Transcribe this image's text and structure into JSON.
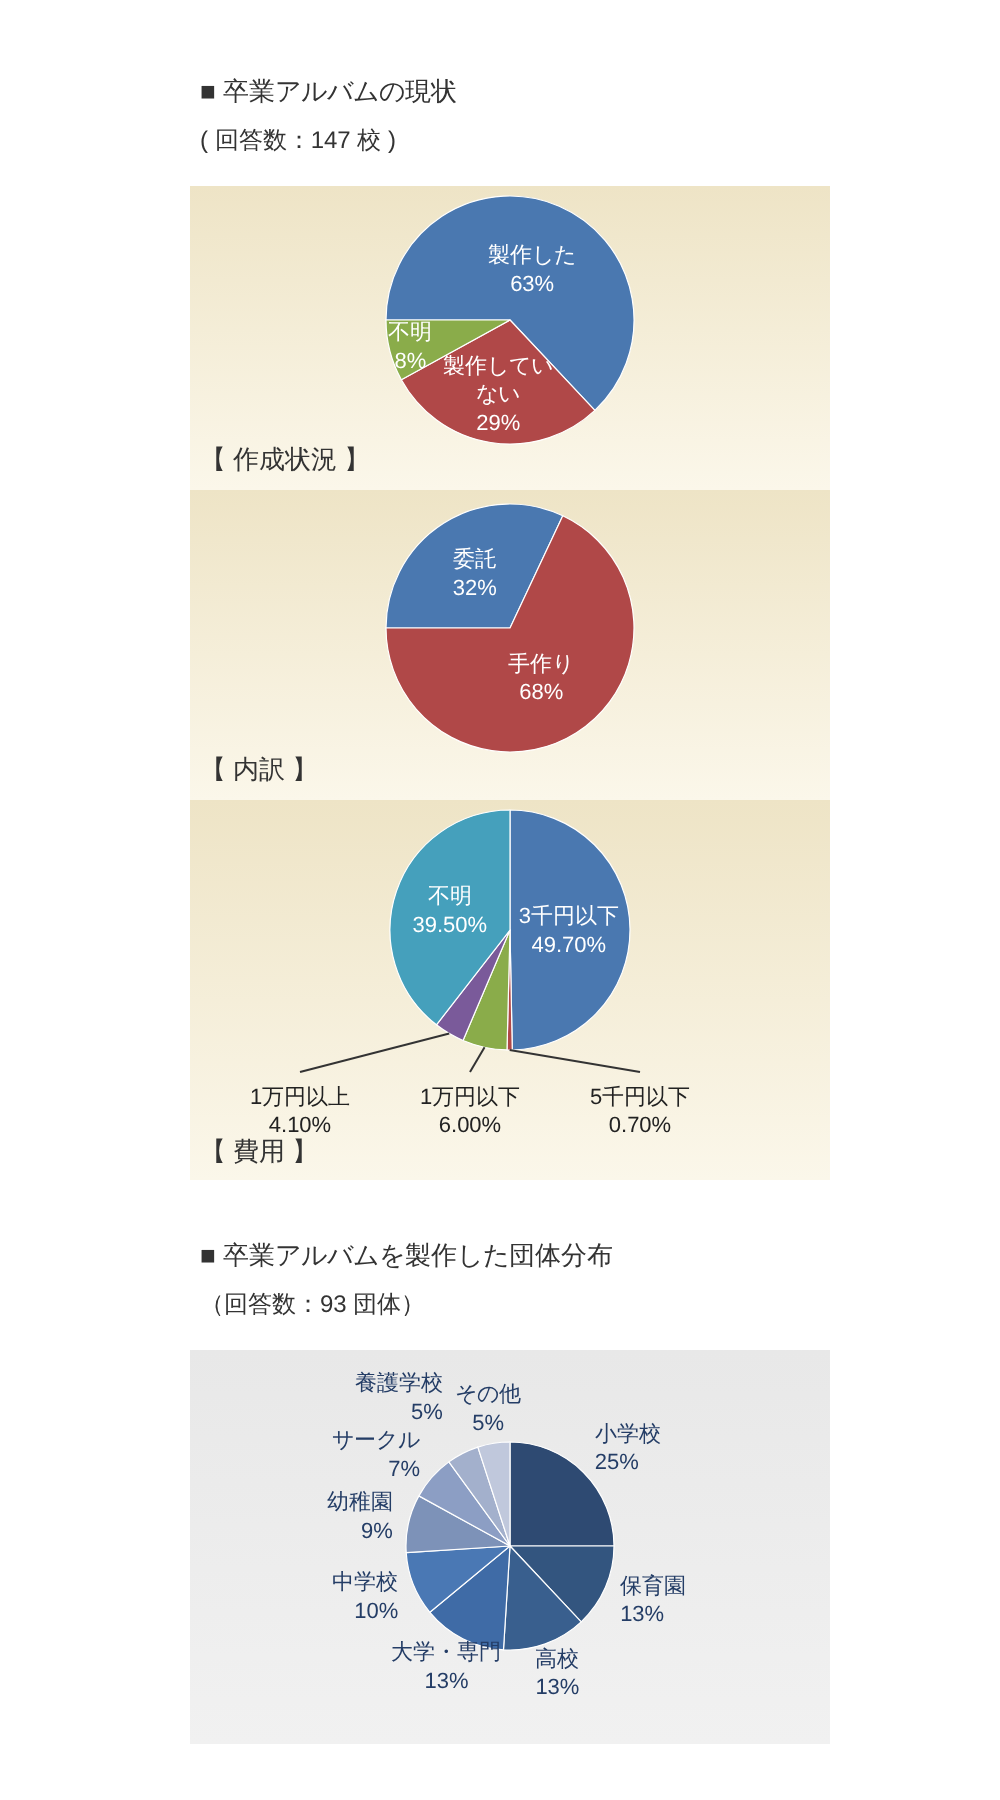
{
  "chart_data": [
    {
      "type": "pie",
      "title": "■ 卒業アルバムの現状",
      "subtitle": "( 回答数：147 校 )",
      "annotations": [
        "【 作成状況 】"
      ],
      "categories": [
        "製作した",
        "製作していない",
        "不明"
      ],
      "values": [
        63,
        29,
        8
      ],
      "value_labels": [
        "63%",
        "29%",
        "8%"
      ],
      "colors": [
        "#4a78b0",
        "#b04848",
        "#8aac4a"
      ]
    },
    {
      "type": "pie",
      "title": "【 内訳 】",
      "categories": [
        "委託",
        "手作り"
      ],
      "values": [
        32,
        68
      ],
      "value_labels": [
        "32%",
        "68%"
      ],
      "colors": [
        "#4a78b0",
        "#b04848"
      ]
    },
    {
      "type": "pie",
      "title": "【 費用 】",
      "categories": [
        "3千円以下",
        "5千円以下",
        "1万円以下",
        "1万円以上",
        "不明"
      ],
      "values": [
        49.7,
        0.7,
        6,
        4.1,
        39.5
      ],
      "value_labels": [
        "49.70%",
        "0.70%",
        "6.00%",
        "4.10%",
        "39.50%"
      ],
      "colors": [
        "#4a78b0",
        "#b04848",
        "#8aac4a",
        "#7a5a9a",
        "#45a0bc"
      ]
    },
    {
      "type": "pie",
      "title": "■ 卒業アルバムを製作した団体分布",
      "subtitle": "（回答数：93 団体）",
      "categories": [
        "小学校",
        "保育園",
        "高校",
        "大学・専門",
        "中学校",
        "幼稚園",
        "サークル",
        "養護学校",
        "その他"
      ],
      "values": [
        25,
        13,
        13,
        13,
        10,
        9,
        7,
        5,
        5
      ],
      "value_labels": [
        "25%",
        "13%",
        "13%",
        "13%",
        "10%",
        "9%",
        "7%",
        "5%",
        "5%"
      ],
      "colors": [
        "#2e4a72",
        "#33557f",
        "#395f8e",
        "#3f6ba6",
        "#4a78b4",
        "#7d92b8",
        "#8c9ec4",
        "#a3b0cc",
        "#c0c8dc"
      ]
    }
  ]
}
